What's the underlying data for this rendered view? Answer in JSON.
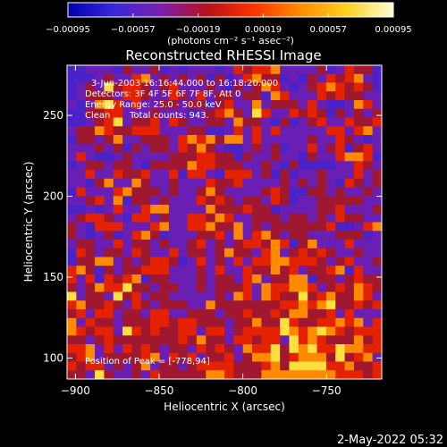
{
  "chart_data": {
    "type": "heatmap",
    "title": "Reconstructed RHESSI Image",
    "xlabel": "Heliocentric X (arcsec)",
    "ylabel": "Heliocentric Y (arcsec)",
    "xlim": [
      -905,
      -717
    ],
    "ylim": [
      87,
      281
    ],
    "x_ticks": [
      -900,
      -850,
      -800,
      -750
    ],
    "x_tick_labels": [
      "−900",
      "−850",
      "−800",
      "−750"
    ],
    "y_ticks": [
      100,
      150,
      200,
      250
    ],
    "y_tick_labels": [
      "100",
      "150",
      "200",
      "250"
    ],
    "colorbar": {
      "ticks": [
        -0.00095,
        -0.00057,
        -0.00019,
        0.00019,
        0.00057,
        0.00095
      ],
      "tick_labels": [
        "−0.00095",
        "−0.00057",
        "−0.00019",
        "0.00019",
        "0.00057",
        "0.00095"
      ],
      "unit_label": "(photons cm⁻² s⁻¹ asec⁻²)",
      "colors": [
        "#0000b0",
        "#3a28d8",
        "#7a1fb0",
        "#b8101a",
        "#ff3300",
        "#ff8c00",
        "#ffd020",
        "#ffffd8"
      ]
    },
    "annotations": {
      "time_range": "3-Jun-2003 16:16:44.000 to 16:18:20.000",
      "detectors": "Detectors: 3F 4F 5F 6F 7F 8F, Att 0",
      "energy": "Energy Range: 25.0 - 50.0 keV",
      "method": "Clean",
      "counts": "Total counts: 943.",
      "peak": "Position of Peak = [-778,94]"
    },
    "image_grid": [
      "2233324334232333235455633334235442",
      "2223433563434342423564423243545632",
      "2343745543453334324346532345654542",
      "2344435543354353443442653335454433",
      "3236753533443442453363444353223653",
      "2244553334333234564375335454243434",
      "2234573445354334436443242345335445",
      "3446544555333442235353533333553563",
      "2443463344435656466353333343354323",
      "3334342434435464322343423353452453",
      "3532234333344455442433433243356652",
      "2344344324444655444334324222233543",
      "3353354453352553255534242334333534",
      "3324633643343335445333343434325434",
      "2533356444343346433334542244343343",
      "3345362443433354543443542334444433",
      "2232353356633336444544233334453334",
      "3455432553433554653344434434354433",
      "4325553335633556446343444444522356",
      "4323423564233344536356434433344423",
      "3443353443433453434554652463335333",
      "2543443543353443464435634545433433",
      "2446634345542353435355665554345334",
      "5642434455533343533544645344562533",
      "5352545624433343443563446624434544",
      "4346557443443343444536556653454654",
      "7344374534433333436536544745644653",
      "5644543543444336444444455656744545",
      "4535534435533444344544546644535333",
      "6354434445545544434464475445565635",
      "6545537545445535534555576567654555",
      "4434544444445464435545537565444645",
      "5563535454344354543655747675576655",
      "4563444456354534453466745666474563",
      "5455343463443455554445647777556445",
      "4437433435444446654446666666655545"
    ]
  },
  "footer": {
    "timestamp": "2-May-2022 05:32"
  }
}
